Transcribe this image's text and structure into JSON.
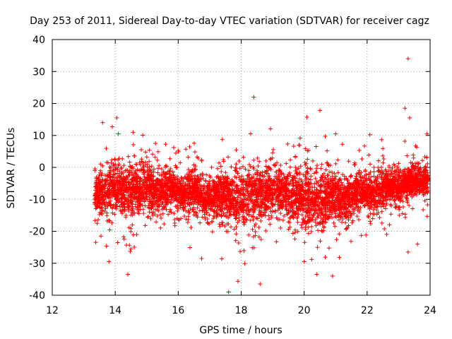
{
  "chart_data": {
    "type": "scatter",
    "title": "Day 253 of 2011, Sidereal Day-to-day VTEC variation (SDTVAR) for receiver cagz",
    "xlabel": "GPS time / hours",
    "ylabel": "SDTVAR / TECUs",
    "xlim": [
      12,
      24
    ],
    "ylim": [
      -40,
      40
    ],
    "x_ticks": [
      12,
      14,
      16,
      18,
      20,
      22,
      24
    ],
    "y_ticks": [
      -40,
      -30,
      -20,
      -10,
      0,
      10,
      20,
      30,
      40
    ],
    "grid": true,
    "marker": "+",
    "series": [
      {
        "name": "SDTVAR cagz",
        "color": "#ff0000",
        "x_range": [
          13.35,
          23.95
        ],
        "trend": [
          {
            "x": 13.4,
            "y": -7.5
          },
          {
            "x": 14.0,
            "y": -7.5
          },
          {
            "x": 15.0,
            "y": -6.5
          },
          {
            "x": 16.0,
            "y": -7.5
          },
          {
            "x": 17.0,
            "y": -9.0
          },
          {
            "x": 18.0,
            "y": -9.5
          },
          {
            "x": 19.0,
            "y": -7.0
          },
          {
            "x": 20.0,
            "y": -9.5
          },
          {
            "x": 21.0,
            "y": -10.0
          },
          {
            "x": 22.0,
            "y": -7.5
          },
          {
            "x": 23.0,
            "y": -6.0
          },
          {
            "x": 24.0,
            "y": -3.5
          }
        ],
        "spread": [
          {
            "x": 13.4,
            "s": 4.0
          },
          {
            "x": 14.5,
            "s": 5.5
          },
          {
            "x": 16.0,
            "s": 3.5
          },
          {
            "x": 17.0,
            "s": 4.0
          },
          {
            "x": 18.0,
            "s": 6.0
          },
          {
            "x": 19.0,
            "s": 5.0
          },
          {
            "x": 20.5,
            "s": 6.0
          },
          {
            "x": 21.5,
            "s": 4.0
          },
          {
            "x": 23.0,
            "s": 3.5
          },
          {
            "x": 24.0,
            "s": 3.0
          }
        ],
        "outliers": [
          {
            "x": 23.3,
            "y": 34
          },
          {
            "x": 18.4,
            "y": 22
          },
          {
            "x": 23.2,
            "y": 18.5
          },
          {
            "x": 23.35,
            "y": 15.5
          },
          {
            "x": 14.05,
            "y": 15.5
          },
          {
            "x": 13.6,
            "y": 14
          },
          {
            "x": 18.3,
            "y": 10.5
          },
          {
            "x": 21.0,
            "y": 10.5
          },
          {
            "x": 23.9,
            "y": 10.5
          },
          {
            "x": 14.1,
            "y": 10.5
          },
          {
            "x": 17.6,
            "y": -39
          },
          {
            "x": 18.6,
            "y": -36.5
          },
          {
            "x": 14.4,
            "y": -33.5
          },
          {
            "x": 13.8,
            "y": -29.5
          },
          {
            "x": 20.0,
            "y": -29.5
          },
          {
            "x": 23.3,
            "y": -26.5
          },
          {
            "x": 14.5,
            "y": -25.5
          },
          {
            "x": 23.6,
            "y": -24
          }
        ]
      }
    ]
  }
}
